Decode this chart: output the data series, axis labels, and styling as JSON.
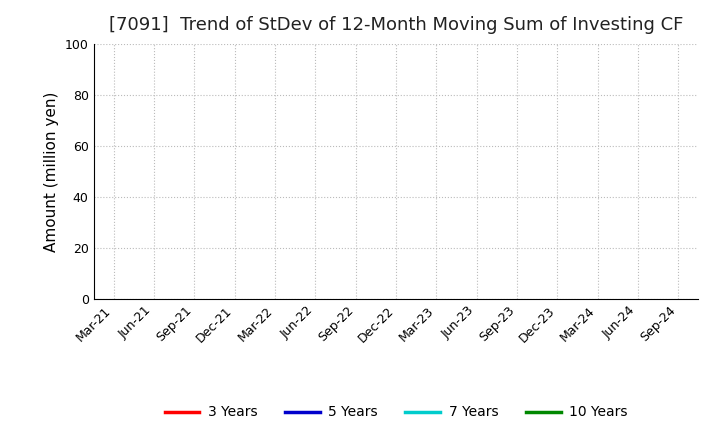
{
  "title": "[7091]  Trend of StDev of 12-Month Moving Sum of Investing CF",
  "ylabel": "Amount (million yen)",
  "ylim": [
    0,
    100
  ],
  "yticks": [
    0,
    20,
    40,
    60,
    80,
    100
  ],
  "x_labels": [
    "Mar-21",
    "Jun-21",
    "Sep-21",
    "Dec-21",
    "Mar-22",
    "Jun-22",
    "Sep-22",
    "Dec-22",
    "Mar-23",
    "Jun-23",
    "Sep-23",
    "Dec-23",
    "Mar-24",
    "Jun-24",
    "Sep-24"
  ],
  "background_color": "#ffffff",
  "grid_color": "#bbbbbb",
  "legend_entries": [
    {
      "label": "3 Years",
      "color": "#ff0000"
    },
    {
      "label": "5 Years",
      "color": "#0000cc"
    },
    {
      "label": "7 Years",
      "color": "#00cccc"
    },
    {
      "label": "10 Years",
      "color": "#008800"
    }
  ],
  "title_fontsize": 13,
  "axis_label_fontsize": 11,
  "tick_fontsize": 9,
  "legend_fontsize": 10
}
